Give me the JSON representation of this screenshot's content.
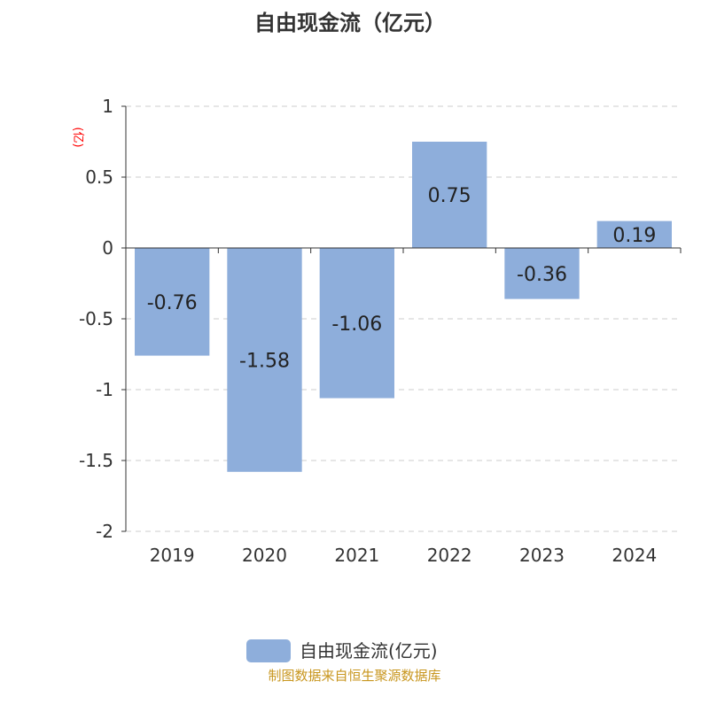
{
  "chart_data": {
    "type": "bar",
    "title": "自由现金流（亿元）",
    "ylabel": "(亿)",
    "categories": [
      "2019",
      "2020",
      "2021",
      "2022",
      "2023",
      "2024"
    ],
    "series": [
      {
        "name": "自由现金流(亿元)",
        "values": [
          -0.76,
          -1.58,
          -1.06,
          0.75,
          -0.36,
          0.19
        ]
      }
    ],
    "data_labels": [
      "-0.76",
      "-1.58",
      "-1.06",
      "0.75",
      "-0.36",
      "0.19"
    ],
    "ylim": [
      -2,
      1
    ],
    "yticks": [
      "1",
      "0.5",
      "0",
      "-0.5",
      "-1",
      "-1.5",
      "-2"
    ],
    "grid": true,
    "legend": "bottom",
    "bar_color": "#8eaedb",
    "ylabel_color": "#ff0000"
  },
  "footer": "制图数据来自恒生聚源数据库",
  "footer_color": "#c8961e"
}
